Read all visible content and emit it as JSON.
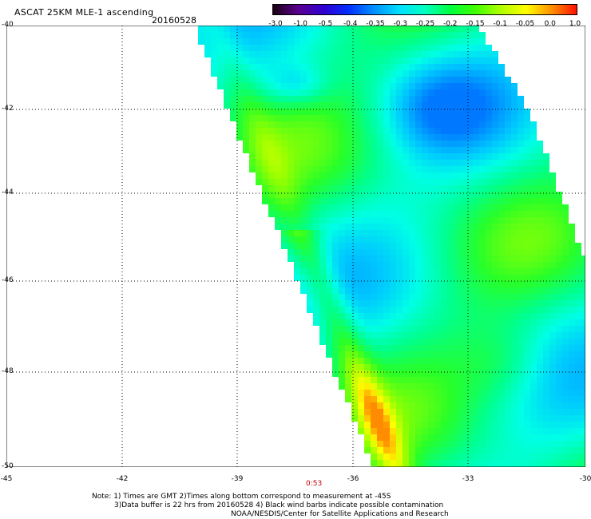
{
  "header": {
    "title": "ASCAT 25KM MLE-1 ascending",
    "date": "20160528"
  },
  "colorbar": {
    "labels": [
      "-3.0",
      "-1.0",
      "-0.5",
      "-0.4",
      "-0.35",
      "-0.3",
      "-0.25",
      "-0.2",
      "-0.15",
      "-0.1",
      "-0.05",
      "0.0",
      "1.0"
    ],
    "colors": [
      "#1a0010",
      "#5a0090",
      "#3000d0",
      "#0030ff",
      "#0090ff",
      "#00e0ff",
      "#00ffc0",
      "#00ff40",
      "#40ff00",
      "#b0ff00",
      "#ffff00",
      "#ff9000",
      "#ff1000"
    ]
  },
  "axes": {
    "lat_labels": [
      "-40",
      "-42",
      "-44",
      "-46",
      "-48",
      "-50"
    ],
    "lon_labels": [
      "-45",
      "-42",
      "-39",
      "-36",
      "-33",
      "-30"
    ]
  },
  "time_label": "0:53",
  "notes": [
    "Note: 1) Times are GMT 2)Times along bottom correspond to measurement at -45S",
    "3)Data buffer is 22 hrs from 20160528 4) Black wind barbs indicate possible contamination",
    "NOAA/NESDIS/Center for Satellite Applications and Research"
  ]
}
